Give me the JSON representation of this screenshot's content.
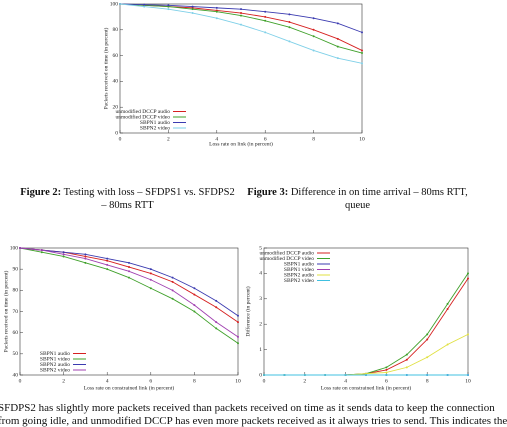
{
  "chart_data": [
    {
      "type": "line",
      "xlabel": "Loss rate on link (in percent)",
      "ylabel": "Packets received on time (in percent)",
      "x": [
        0,
        1,
        2,
        3,
        4,
        5,
        6,
        7,
        8,
        9,
        10
      ],
      "xlim": [
        0,
        10
      ],
      "xticks": [
        0,
        2,
        4,
        6,
        8,
        10
      ],
      "ylim": [
        0,
        100
      ],
      "yticks": [
        0,
        20,
        40,
        60,
        80,
        100
      ],
      "legend": "bottom-left",
      "series": [
        {
          "name": "unmodified DCCP audio",
          "color": "#d62020",
          "values": [
            100,
            99,
            98,
            97,
            95,
            93,
            90,
            86,
            80,
            73,
            64
          ]
        },
        {
          "name": "unmodified DCCP video",
          "color": "#3fa02a",
          "values": [
            100,
            99,
            98,
            96,
            94,
            91,
            87,
            82,
            75,
            67,
            62
          ]
        },
        {
          "name": "SBPN1 audio",
          "color": "#3b3bb0",
          "values": [
            100,
            99.5,
            99,
            98,
            97,
            96,
            94,
            92,
            89,
            85,
            78
          ]
        },
        {
          "name": "SBPN2 video",
          "color": "#7fd0e8",
          "values": [
            100,
            98,
            96,
            93,
            89,
            84,
            78,
            71,
            64,
            58,
            54
          ]
        }
      ]
    },
    {
      "type": "line",
      "xlabel": "Loss rate on constrained link (in percent)",
      "ylabel": "Packets received on time (in percent)",
      "x": [
        0,
        1,
        2,
        3,
        4,
        5,
        6,
        7,
        8,
        9,
        10
      ],
      "xlim": [
        0,
        10
      ],
      "xticks": [
        0,
        2,
        4,
        6,
        8,
        10
      ],
      "ylim": [
        40,
        100
      ],
      "yticks": [
        40,
        50,
        60,
        70,
        80,
        90,
        100
      ],
      "legend": "bottom-left",
      "series": [
        {
          "name": "SBPN1 audio",
          "color": "#d62020",
          "values": [
            100,
            99,
            98,
            96,
            94,
            91,
            88,
            84,
            78,
            72,
            65
          ]
        },
        {
          "name": "SBPN1 video",
          "color": "#3fa02a",
          "values": [
            100,
            98,
            96,
            93,
            90,
            86,
            81,
            76,
            70,
            62,
            55
          ]
        },
        {
          "name": "SBPN2 audio",
          "color": "#3b3bb0",
          "values": [
            100,
            99,
            98,
            97,
            95,
            93,
            90,
            86,
            81,
            75,
            68
          ]
        },
        {
          "name": "SBPN2 video",
          "color": "#a040b0",
          "values": [
            100,
            99,
            97,
            95,
            92,
            89,
            85,
            80,
            73,
            65,
            58
          ]
        }
      ]
    },
    {
      "type": "line",
      "xlabel": "Loss rate on constrained link (in percent)",
      "ylabel": "Difference (in percent)",
      "x": [
        0,
        1,
        2,
        3,
        4,
        5,
        6,
        7,
        8,
        9,
        10
      ],
      "xlim": [
        0,
        10
      ],
      "xticks": [
        0,
        2,
        4,
        6,
        8,
        10
      ],
      "ylim": [
        0,
        5
      ],
      "yticks": [
        0,
        1,
        2,
        3,
        4,
        5
      ],
      "legend": "top-left",
      "series": [
        {
          "name": "unmodified DCCP audio",
          "color": "#d62020",
          "values": [
            0,
            0,
            0,
            0,
            0,
            0.05,
            0.2,
            0.6,
            1.4,
            2.6,
            3.8
          ]
        },
        {
          "name": "unmodified DCCP video",
          "color": "#3fa02a",
          "values": [
            0,
            0,
            0,
            0,
            0,
            0.05,
            0.3,
            0.8,
            1.6,
            2.8,
            4.0
          ]
        },
        {
          "name": "SBPN1 audio",
          "color": "#3b3bb0",
          "values": [
            0,
            0,
            0,
            0,
            0,
            0,
            0,
            0,
            0,
            0,
            0
          ]
        },
        {
          "name": "SBPN1 video",
          "color": "#a040b0",
          "values": [
            0,
            0,
            0,
            0,
            0,
            0,
            0,
            0,
            0,
            0,
            0
          ]
        },
        {
          "name": "SBPN2 audio",
          "color": "#e0e040",
          "values": [
            0,
            0,
            0,
            0,
            0,
            0.05,
            0.1,
            0.3,
            0.7,
            1.2,
            1.6
          ]
        },
        {
          "name": "SBPN2 video",
          "color": "#40c0e0",
          "values": [
            0,
            0,
            0,
            0,
            0,
            0,
            0,
            0,
            0,
            0,
            0
          ]
        }
      ]
    }
  ],
  "captions": [
    {
      "label": "Figure 2:",
      "text": "Testing with loss – SFDPS1 vs. SFDPS2 – 80ms RTT"
    },
    {
      "label": "Figure 3:",
      "text": "Difference in on time arrival – 80ms RTT, queue"
    }
  ],
  "body": [
    "SFDPS2 has slightly more packets received than packets received on time as it sends data to keep the connection",
    "from going idle, and unmodified DCCP has even more packets received as it always tries to send. This indicates the"
  ]
}
